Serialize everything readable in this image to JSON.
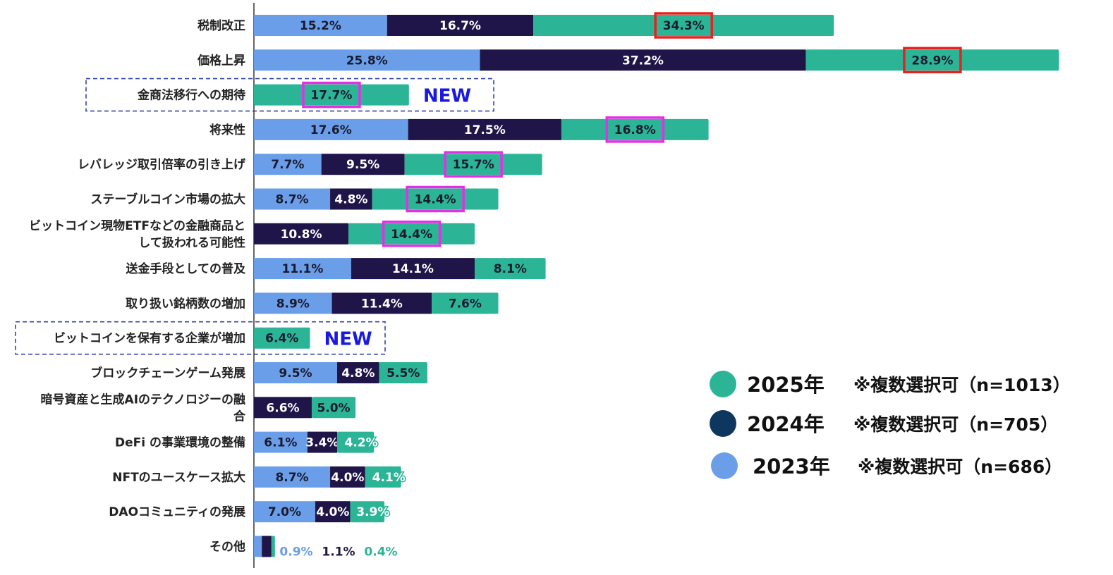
{
  "chart_data": {
    "type": "bar",
    "orientation": "horizontal",
    "stacked": true,
    "title": "",
    "xlabel": "",
    "ylabel": "",
    "xlim": [
      0,
      92
    ],
    "grid": false,
    "categories": [
      "税制改正",
      "価格上昇",
      "金商法移行への期待",
      "将来性",
      "レバレッジ取引倍率の引き上げ",
      "ステーブルコイン市場の拡大",
      "ビットコイン現物ETFなどの金融商品と|して扱われる可能性",
      "送金手段としての普及",
      "取り扱い銘柄数の増加",
      "ビットコインを保有する企業が増加",
      "ブロックチェーンゲーム発展",
      "暗号資産と生成AIのテクノロジーの融|合",
      "DeFi の事業環境の整備",
      "NFTのユースケース拡大",
      "DAOコミュニティの発展",
      "その他"
    ],
    "series": [
      {
        "name": "2023年",
        "color": "#6b9ee9",
        "text_color": "#1a1a2e",
        "values": [
          15.2,
          25.8,
          null,
          17.6,
          7.7,
          8.7,
          null,
          11.1,
          8.9,
          null,
          9.5,
          null,
          6.1,
          8.7,
          7.0,
          0.9
        ]
      },
      {
        "name": "2024年",
        "color": "#1f1548",
        "text_color": "#ffffff",
        "values": [
          16.7,
          37.2,
          null,
          17.5,
          9.5,
          4.8,
          10.8,
          14.1,
          11.4,
          null,
          4.8,
          6.6,
          3.4,
          4.0,
          4.0,
          1.1
        ]
      },
      {
        "name": "2025年",
        "color": "#2bb596",
        "text_color": "#1a1a2e",
        "values": [
          34.3,
          28.9,
          17.7,
          16.8,
          15.7,
          14.4,
          14.4,
          8.1,
          7.6,
          6.4,
          5.5,
          5.0,
          4.2,
          4.1,
          3.9,
          0.4
        ]
      }
    ],
    "value_labels_suffix": "%",
    "highlights": [
      {
        "category_index": 0,
        "series": "2025年",
        "color": "#e8201e"
      },
      {
        "category_index": 1,
        "series": "2025年",
        "color": "#e8201e"
      },
      {
        "category_index": 2,
        "series": "2025年",
        "color": "#e62ee6"
      },
      {
        "category_index": 3,
        "series": "2025年",
        "color": "#e62ee6"
      },
      {
        "category_index": 4,
        "series": "2025年",
        "color": "#e62ee6"
      },
      {
        "category_index": 5,
        "series": "2025年",
        "color": "#e62ee6"
      },
      {
        "category_index": 6,
        "series": "2025年",
        "color": "#e62ee6"
      }
    ],
    "new_badge": {
      "text": "NEW",
      "color": "#1a1adf",
      "category_indices": [
        2,
        9
      ]
    },
    "legend": {
      "placement": "right",
      "entries": [
        {
          "year": "2025年",
          "note": "※複数選択可（n=1013）",
          "color": "#2bb596"
        },
        {
          "year": "2024年",
          "note": "※複数選択可（n=705）",
          "color": "#0e3760"
        },
        {
          "year": "2023年",
          "note": "※複数選択可（n=686）",
          "color": "#6b9ee9"
        }
      ]
    }
  }
}
